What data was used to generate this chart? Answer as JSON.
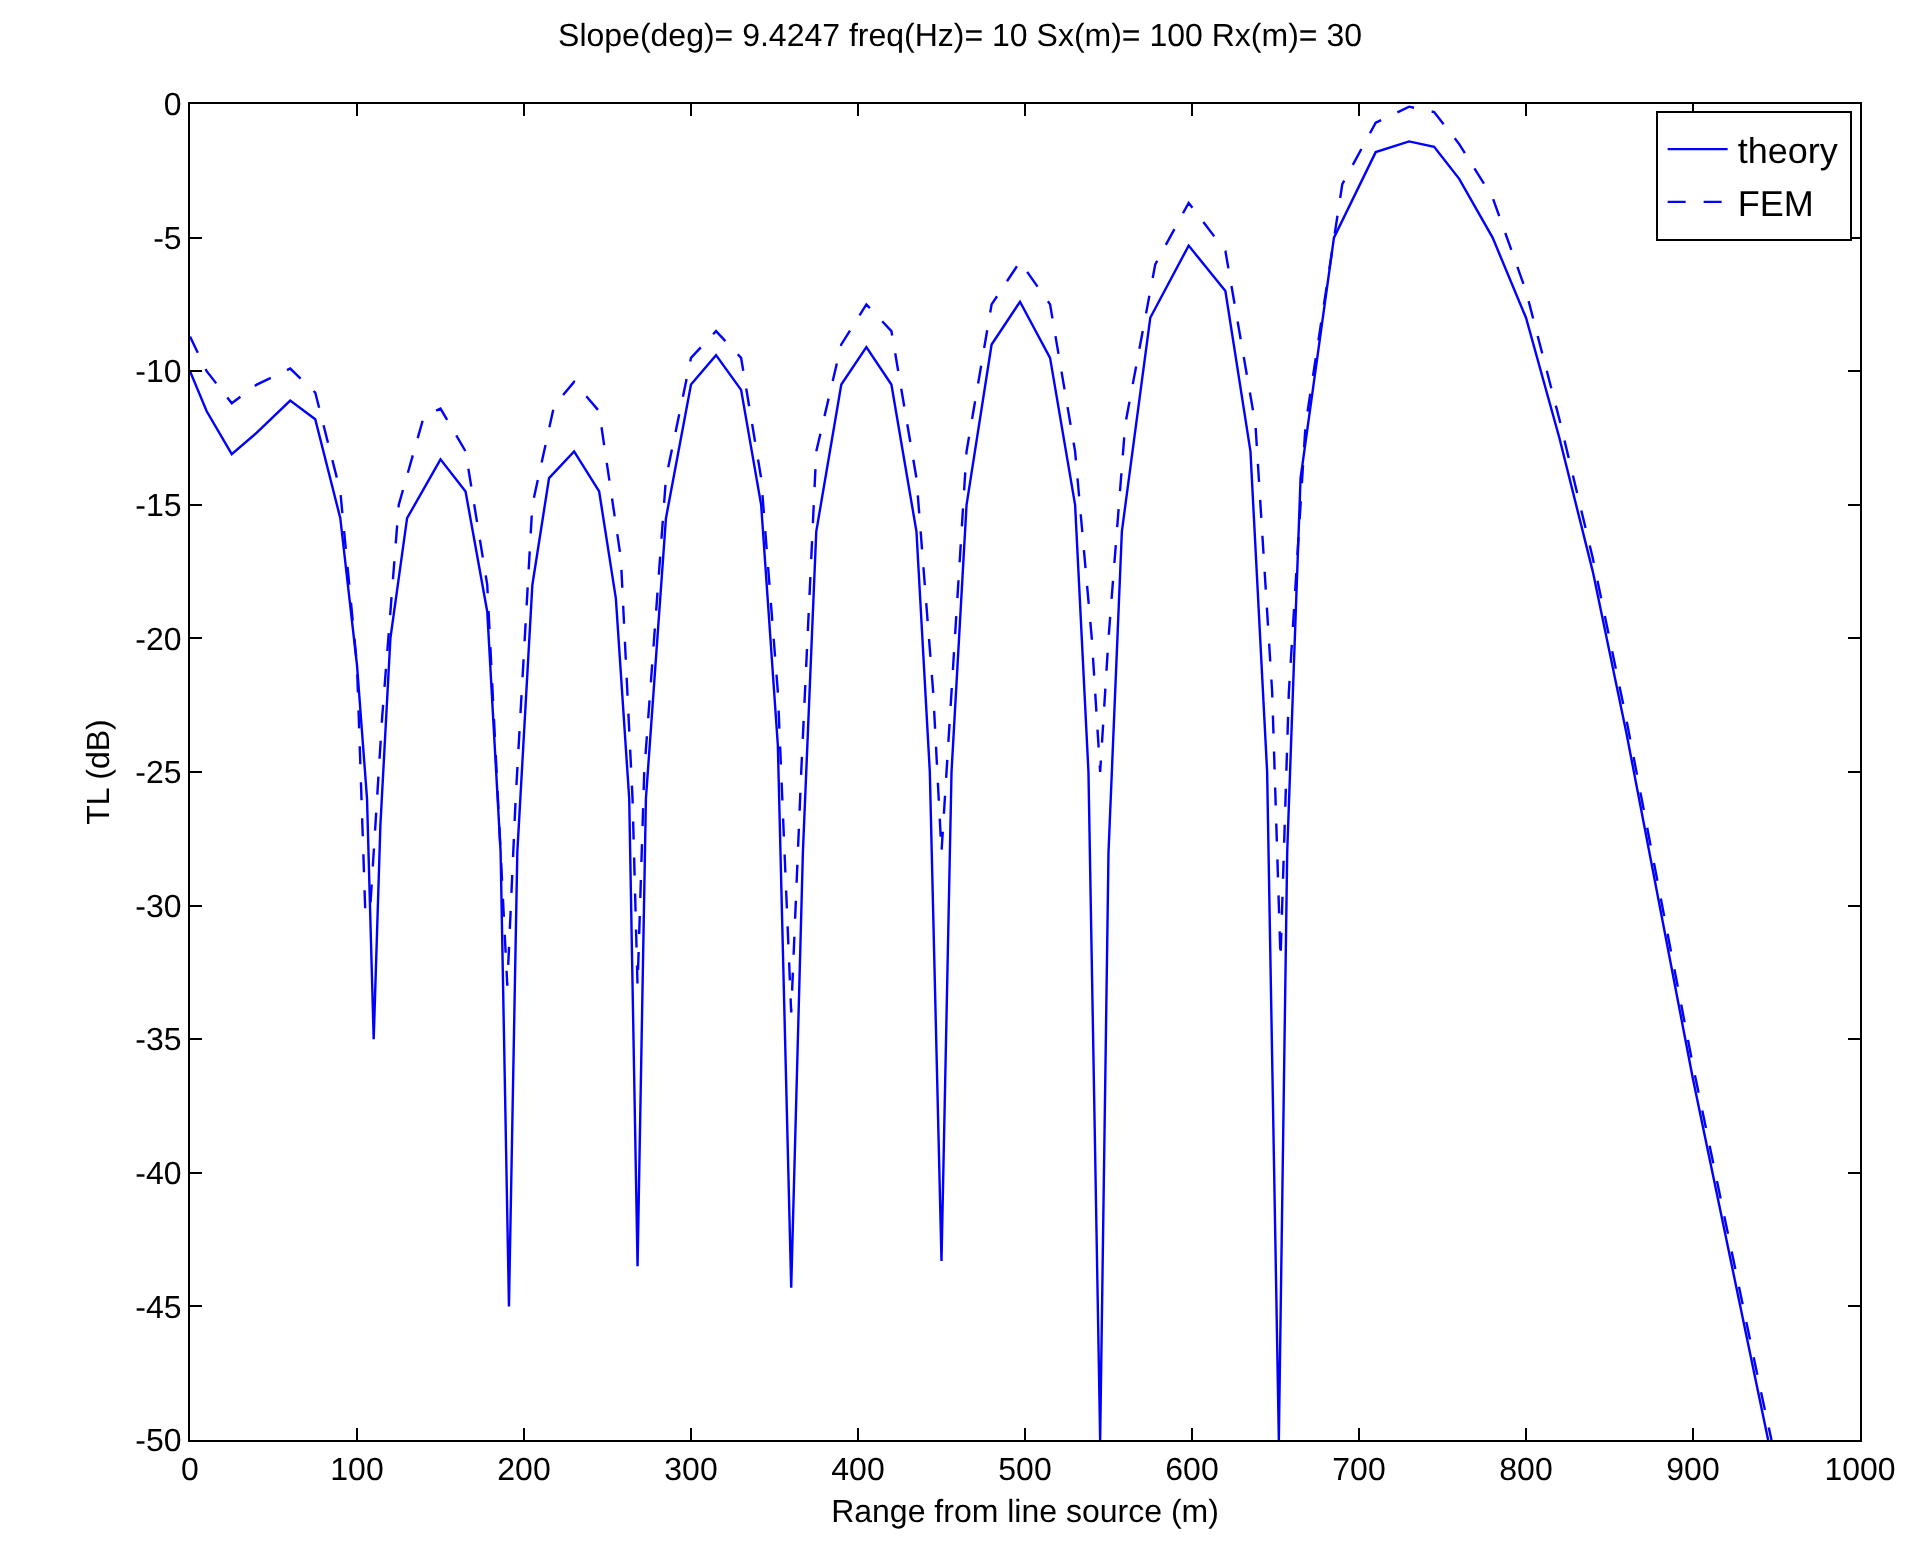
{
  "chart_data": {
    "type": "line",
    "title": "Slope(deg)= 9.4247 freq(Hz)= 10 Sx(m)= 100 Rx(m)= 30",
    "xlabel": "Range from line source (m)",
    "ylabel": "TL (dB)",
    "xlim": [
      0,
      1000
    ],
    "xticks": [
      0,
      100,
      200,
      300,
      400,
      500,
      600,
      700,
      800,
      900,
      1000
    ],
    "ylim": [
      -50,
      0
    ],
    "yticks": [
      -50,
      -45,
      -40,
      -35,
      -30,
      -25,
      -20,
      -15,
      -10,
      -5,
      0
    ],
    "legend": "top right",
    "marker": "none",
    "series": [
      {
        "name": "theory",
        "color": "#0000ff",
        "line_style": "solid",
        "x": [
          0,
          10,
          25,
          40,
          60,
          75,
          90,
          100,
          106,
          110,
          114,
          120,
          130,
          150,
          165,
          178,
          186,
          191,
          196,
          205,
          215,
          230,
          245,
          255,
          263,
          268,
          273,
          285,
          300,
          315,
          330,
          342,
          352,
          360,
          367,
          375,
          390,
          405,
          420,
          435,
          443,
          450,
          456,
          465,
          480,
          497,
          515,
          530,
          538,
          545,
          550,
          558,
          575,
          598,
          620,
          635,
          645,
          652,
          657,
          665,
          685,
          710,
          730,
          745,
          760,
          780,
          800,
          820,
          840,
          860,
          880,
          900,
          920,
          940,
          945
        ],
        "values": [
          -10,
          -11.5,
          -13.1,
          -12.3,
          -11.1,
          -11.8,
          -15.5,
          -21,
          -26,
          -35,
          -27,
          -20,
          -15.5,
          -13.3,
          -14.5,
          -19,
          -28,
          -45,
          -28,
          -18,
          -14,
          -13,
          -14.5,
          -18.5,
          -26,
          -43.5,
          -26,
          -15.5,
          -10.5,
          -9.4,
          -10.7,
          -15,
          -24,
          -44.3,
          -28,
          -16,
          -10.5,
          -9.1,
          -10.5,
          -16,
          -25,
          -43.3,
          -25,
          -15,
          -9,
          -7.4,
          -9.5,
          -15,
          -25,
          -50,
          -28,
          -16,
          -8,
          -5.3,
          -7,
          -13,
          -25,
          -50,
          -28,
          -14,
          -5,
          -1.8,
          -1.4,
          -1.6,
          -2.8,
          -5,
          -8,
          -12.5,
          -17.5,
          -23.5,
          -30,
          -36.5,
          -42.5,
          -48.5,
          -50
        ]
      },
      {
        "name": "FEM",
        "color": "#0000ff",
        "line_style": "dashed",
        "x": [
          0,
          10,
          25,
          40,
          60,
          75,
          90,
          100,
          105,
          108,
          115,
          125,
          140,
          150,
          165,
          178,
          186,
          190,
          195,
          205,
          218,
          230,
          245,
          258,
          265,
          268,
          272,
          285,
          300,
          315,
          330,
          342,
          352,
          360,
          366,
          375,
          390,
          405,
          420,
          435,
          445,
          450,
          456,
          465,
          480,
          497,
          515,
          530,
          540,
          545,
          550,
          560,
          578,
          598,
          620,
          638,
          648,
          653,
          658,
          668,
          690,
          710,
          730,
          745,
          760,
          780,
          800,
          820,
          840,
          860,
          880,
          900,
          920,
          940,
          947
        ],
        "values": [
          -8.7,
          -10,
          -11.2,
          -10.5,
          -9.9,
          -10.8,
          -14.5,
          -21,
          -30.3,
          -30,
          -23,
          -15,
          -11.7,
          -11.4,
          -13,
          -18,
          -28,
          -33,
          -26,
          -15,
          -11.3,
          -10.4,
          -11.5,
          -17,
          -26,
          -33,
          -25,
          -14,
          -9.5,
          -8.5,
          -9.5,
          -14,
          -22,
          -34,
          -25,
          -13,
          -9,
          -7.5,
          -8.5,
          -14,
          -22,
          -28,
          -22,
          -13,
          -7.5,
          -5.9,
          -7.5,
          -13,
          -20,
          -25,
          -20,
          -12,
          -6,
          -3.7,
          -5.5,
          -12,
          -22,
          -32,
          -22,
          -12,
          -3,
          -0.7,
          -0.1,
          -0.3,
          -1.5,
          -3.5,
          -7,
          -11.8,
          -17,
          -23,
          -29.5,
          -36,
          -42,
          -48,
          -50
        ]
      }
    ]
  }
}
